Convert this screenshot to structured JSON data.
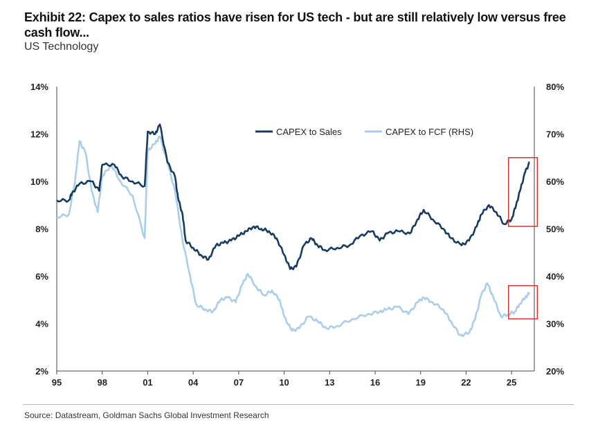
{
  "header": {
    "title": "Exhibit 22: Capex to sales ratios have risen for US tech - but are still relatively low versus free cash flow...",
    "subtitle": "US Technology"
  },
  "footer": {
    "source": "Source: Datastream, Goldman Sachs Global Investment Research"
  },
  "colors": {
    "capex_sales": "#163b63",
    "capex_fcf": "#a9cdea",
    "highlight_box": "#d9322f"
  },
  "chart_data": {
    "type": "line",
    "x_tick_labels": [
      "95",
      "98",
      "01",
      "04",
      "07",
      "10",
      "13",
      "16",
      "19",
      "22",
      "25"
    ],
    "x_tick_years": [
      1995,
      1998,
      2001,
      2004,
      2007,
      2010,
      2013,
      2016,
      2019,
      2022,
      2025
    ],
    "xlim": [
      1995,
      2026.5
    ],
    "y_left": {
      "tick_labels": [
        "2%",
        "4%",
        "6%",
        "8%",
        "10%",
        "12%",
        "14%"
      ],
      "ylim": [
        2,
        14
      ]
    },
    "y_right": {
      "tick_labels": [
        "20%",
        "30%",
        "40%",
        "50%",
        "60%",
        "70%",
        "80%"
      ],
      "ylim": [
        20,
        80
      ]
    },
    "legend_position": "top-right",
    "series": [
      {
        "name": "CAPEX to Sales",
        "axis": "left",
        "points": [
          [
            1995.0,
            9.2
          ],
          [
            1995.8,
            9.2
          ],
          [
            1996.0,
            9.5
          ],
          [
            1996.5,
            9.9
          ],
          [
            1997.3,
            10.0
          ],
          [
            1997.8,
            9.6
          ],
          [
            1998.0,
            10.7
          ],
          [
            1998.8,
            10.7
          ],
          [
            1999.3,
            10.2
          ],
          [
            2000.0,
            10.0
          ],
          [
            2000.8,
            9.8
          ],
          [
            2001.0,
            12.1
          ],
          [
            2001.5,
            12.0
          ],
          [
            2001.8,
            12.4
          ],
          [
            2002.3,
            10.8
          ],
          [
            2002.8,
            10.2
          ],
          [
            2003.0,
            9.3
          ],
          [
            2003.3,
            8.6
          ],
          [
            2003.5,
            7.5
          ],
          [
            2004.0,
            7.2
          ],
          [
            2004.5,
            6.9
          ],
          [
            2005.0,
            6.7
          ],
          [
            2005.5,
            7.3
          ],
          [
            2006.0,
            7.4
          ],
          [
            2006.5,
            7.5
          ],
          [
            2007.0,
            7.7
          ],
          [
            2007.5,
            7.9
          ],
          [
            2008.0,
            8.1
          ],
          [
            2008.5,
            8.0
          ],
          [
            2009.0,
            7.9
          ],
          [
            2009.5,
            7.6
          ],
          [
            2010.0,
            6.9
          ],
          [
            2010.4,
            6.3
          ],
          [
            2010.8,
            6.4
          ],
          [
            2011.3,
            7.3
          ],
          [
            2011.8,
            7.6
          ],
          [
            2012.2,
            7.3
          ],
          [
            2012.7,
            7.1
          ],
          [
            2013.5,
            7.2
          ],
          [
            2014.3,
            7.3
          ],
          [
            2015.0,
            7.7
          ],
          [
            2015.8,
            7.9
          ],
          [
            2016.3,
            7.5
          ],
          [
            2016.8,
            7.8
          ],
          [
            2017.5,
            7.9
          ],
          [
            2018.3,
            7.8
          ],
          [
            2018.8,
            8.4
          ],
          [
            2019.2,
            8.8
          ],
          [
            2019.8,
            8.4
          ],
          [
            2020.5,
            8.0
          ],
          [
            2021.0,
            7.6
          ],
          [
            2021.7,
            7.3
          ],
          [
            2022.2,
            7.5
          ],
          [
            2022.7,
            8.1
          ],
          [
            2023.0,
            8.6
          ],
          [
            2023.5,
            9.0
          ],
          [
            2024.0,
            8.7
          ],
          [
            2024.5,
            8.2
          ],
          [
            2025.0,
            8.4
          ],
          [
            2025.3,
            9.0
          ],
          [
            2025.6,
            9.7
          ],
          [
            2025.9,
            10.4
          ],
          [
            2026.2,
            10.8
          ]
        ]
      },
      {
        "name": "CAPEX to FCF (RHS)",
        "axis": "right",
        "points": [
          [
            1995.0,
            52.5
          ],
          [
            1995.8,
            53.0
          ],
          [
            1996.2,
            60.0
          ],
          [
            1996.5,
            68.5
          ],
          [
            1996.9,
            66.0
          ],
          [
            1997.3,
            58.0
          ],
          [
            1997.7,
            53.5
          ],
          [
            1998.0,
            61.0
          ],
          [
            1998.6,
            63.5
          ],
          [
            1999.2,
            60.0
          ],
          [
            2000.0,
            57.0
          ],
          [
            2000.8,
            48.0
          ],
          [
            2001.0,
            66.5
          ],
          [
            2001.5,
            68.0
          ],
          [
            2001.8,
            69.5
          ],
          [
            2002.3,
            64.0
          ],
          [
            2002.8,
            58.0
          ],
          [
            2003.3,
            47.5
          ],
          [
            2003.8,
            40.0
          ],
          [
            2004.2,
            34.0
          ],
          [
            2004.8,
            33.0
          ],
          [
            2005.3,
            32.5
          ],
          [
            2005.8,
            35.0
          ],
          [
            2006.3,
            35.5
          ],
          [
            2006.8,
            34.5
          ],
          [
            2007.2,
            38.0
          ],
          [
            2007.6,
            40.5
          ],
          [
            2008.2,
            37.5
          ],
          [
            2008.7,
            36.0
          ],
          [
            2009.2,
            37.0
          ],
          [
            2009.7,
            35.0
          ],
          [
            2010.0,
            31.5
          ],
          [
            2010.5,
            28.5
          ],
          [
            2011.0,
            29.0
          ],
          [
            2011.6,
            31.5
          ],
          [
            2012.2,
            30.5
          ],
          [
            2012.8,
            29.0
          ],
          [
            2013.5,
            29.5
          ],
          [
            2014.5,
            31.0
          ],
          [
            2015.5,
            32.0
          ],
          [
            2016.3,
            32.5
          ],
          [
            2016.8,
            33.0
          ],
          [
            2017.5,
            33.5
          ],
          [
            2018.2,
            32.0
          ],
          [
            2018.8,
            34.5
          ],
          [
            2019.2,
            35.5
          ],
          [
            2019.8,
            34.5
          ],
          [
            2020.5,
            33.0
          ],
          [
            2021.0,
            30.5
          ],
          [
            2021.6,
            27.5
          ],
          [
            2022.2,
            28.0
          ],
          [
            2022.6,
            31.0
          ],
          [
            2023.0,
            36.0
          ],
          [
            2023.4,
            38.5
          ],
          [
            2023.8,
            35.5
          ],
          [
            2024.3,
            31.5
          ],
          [
            2024.8,
            32.0
          ],
          [
            2025.2,
            32.5
          ],
          [
            2025.5,
            34.0
          ],
          [
            2025.9,
            35.5
          ],
          [
            2026.2,
            36.5
          ]
        ]
      }
    ],
    "annotations": [
      {
        "type": "box",
        "axis": "left",
        "x_range": [
          2024.8,
          2026.7
        ],
        "y_range": [
          8.1,
          11.0
        ]
      },
      {
        "type": "box",
        "axis": "right",
        "x_range": [
          2024.8,
          2026.7
        ],
        "y_range": [
          31.0,
          38.0
        ]
      }
    ]
  }
}
